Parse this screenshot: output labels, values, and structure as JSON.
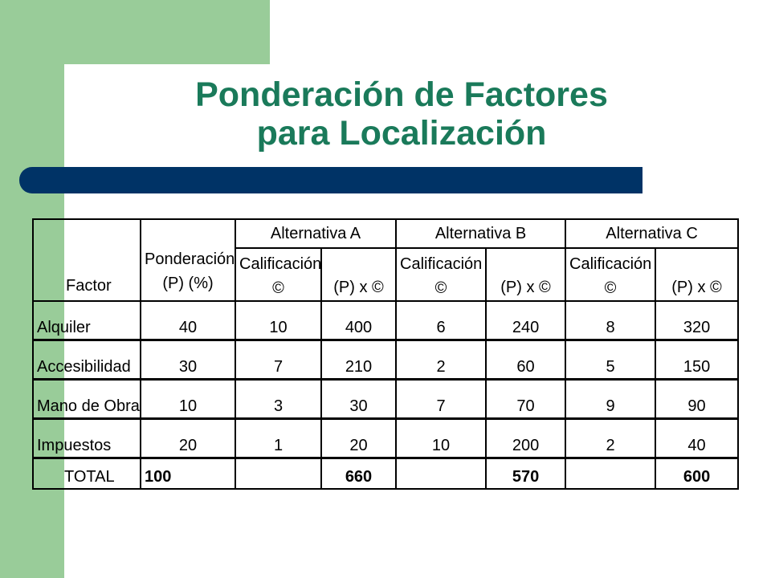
{
  "title": {
    "line1": "Ponderación de Factores",
    "line2": "para Localización"
  },
  "table": {
    "header": {
      "factor": "Factor",
      "ponderacion_1": "Ponderación",
      "ponderacion_2": "(P) (%)",
      "alternatives": [
        "Alternativa A",
        "Alternativa B",
        "Alternativa C"
      ],
      "calificacion_1": "Calificación",
      "calificacion_2": "©",
      "producto": "(P) x ©"
    },
    "rows": [
      {
        "factor": "Alquiler",
        "p": "40",
        "a_cal": "10",
        "a_px": "400",
        "b_cal": "6",
        "b_px": "240",
        "c_cal": "8",
        "c_px": "320"
      },
      {
        "factor": "Accesibilidad",
        "p": "30",
        "a_cal": "7",
        "a_px": "210",
        "b_cal": "2",
        "b_px": "60",
        "c_cal": "5",
        "c_px": "150"
      },
      {
        "factor": "Mano de Obra",
        "p": "10",
        "a_cal": "3",
        "a_px": "30",
        "b_cal": "7",
        "b_px": "70",
        "c_cal": "9",
        "c_px": "90"
      },
      {
        "factor": "Impuestos",
        "p": "20",
        "a_cal": "1",
        "a_px": "20",
        "b_cal": "10",
        "b_px": "200",
        "c_cal": "2",
        "c_px": "40"
      }
    ],
    "total": {
      "label": "TOTAL",
      "p": "100",
      "a_px": "660",
      "b_px": "570",
      "c_px": "600"
    }
  },
  "colors": {
    "sidebar": "#99cc99",
    "title": "#1a7a5a",
    "bar": "#003366"
  }
}
